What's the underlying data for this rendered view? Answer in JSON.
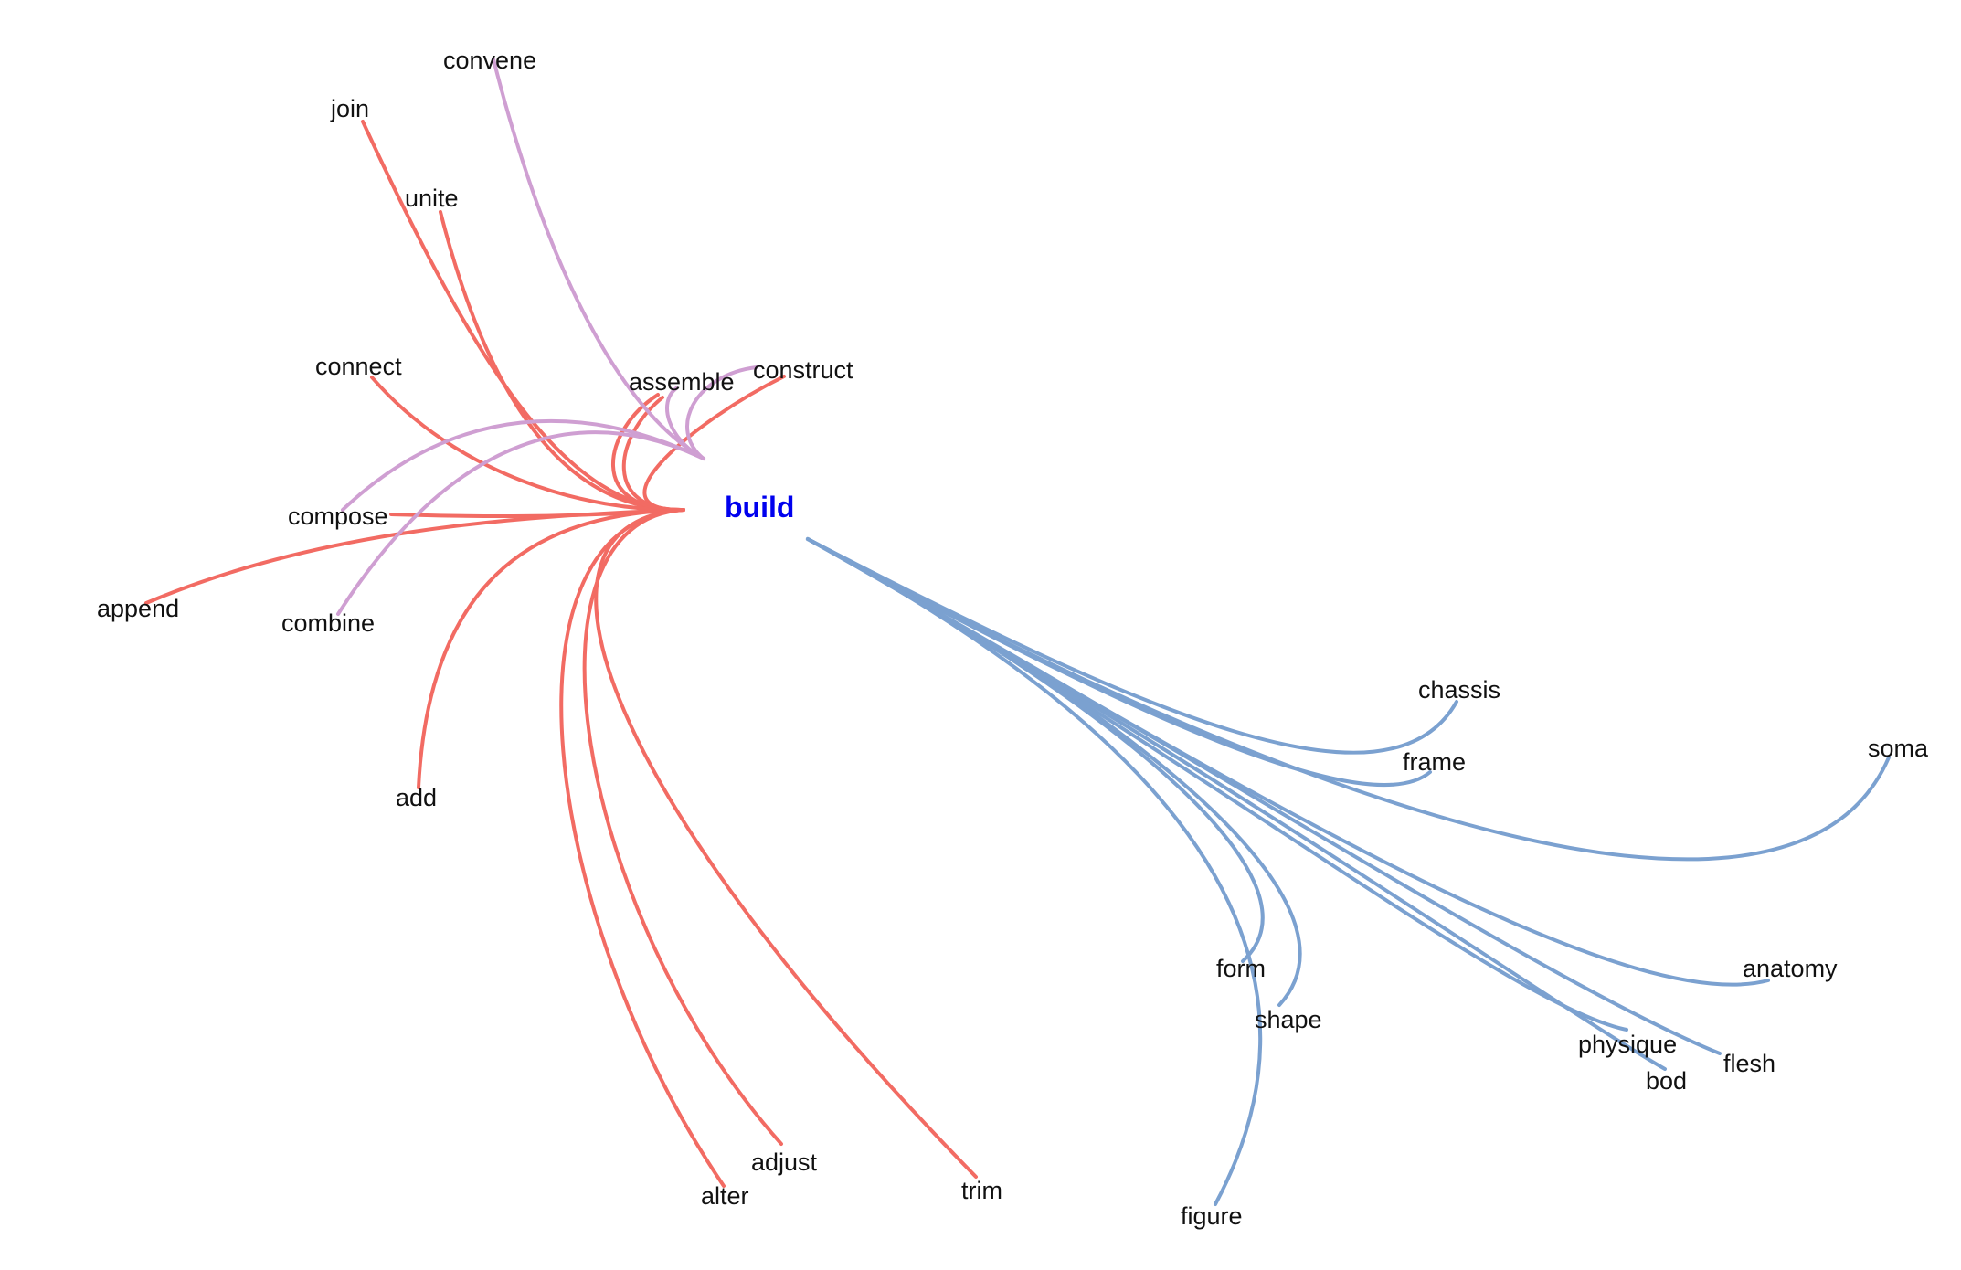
{
  "center": {
    "label": "build",
    "color": "#0000ee"
  },
  "colors": {
    "red": "#f26b63",
    "purple": "#cf9fd2",
    "blue": "#7ba1d0"
  },
  "words": [
    {
      "id": "convene",
      "label": "convene",
      "group": "purple"
    },
    {
      "id": "join",
      "label": "join",
      "group": "red"
    },
    {
      "id": "unite",
      "label": "unite",
      "group": "red"
    },
    {
      "id": "connect",
      "label": "connect",
      "group": "red"
    },
    {
      "id": "assemble",
      "label": "assemble",
      "group": "purple"
    },
    {
      "id": "construct",
      "label": "construct",
      "group": "red"
    },
    {
      "id": "compose",
      "label": "compose",
      "group": "red"
    },
    {
      "id": "append",
      "label": "append",
      "group": "red"
    },
    {
      "id": "combine",
      "label": "combine",
      "group": "purple"
    },
    {
      "id": "add",
      "label": "add",
      "group": "red"
    },
    {
      "id": "adjust",
      "label": "adjust",
      "group": "red"
    },
    {
      "id": "alter",
      "label": "alter",
      "group": "red"
    },
    {
      "id": "trim",
      "label": "trim",
      "group": "red"
    },
    {
      "id": "chassis",
      "label": "chassis",
      "group": "blue"
    },
    {
      "id": "frame",
      "label": "frame",
      "group": "blue"
    },
    {
      "id": "soma",
      "label": "soma",
      "group": "blue"
    },
    {
      "id": "form",
      "label": "form",
      "group": "blue"
    },
    {
      "id": "shape",
      "label": "shape",
      "group": "blue"
    },
    {
      "id": "anatomy",
      "label": "anatomy",
      "group": "blue"
    },
    {
      "id": "physique",
      "label": "physique",
      "group": "blue"
    },
    {
      "id": "bod",
      "label": "bod",
      "group": "blue"
    },
    {
      "id": "flesh",
      "label": "flesh",
      "group": "blue"
    },
    {
      "id": "figure",
      "label": "figure",
      "group": "blue"
    }
  ]
}
